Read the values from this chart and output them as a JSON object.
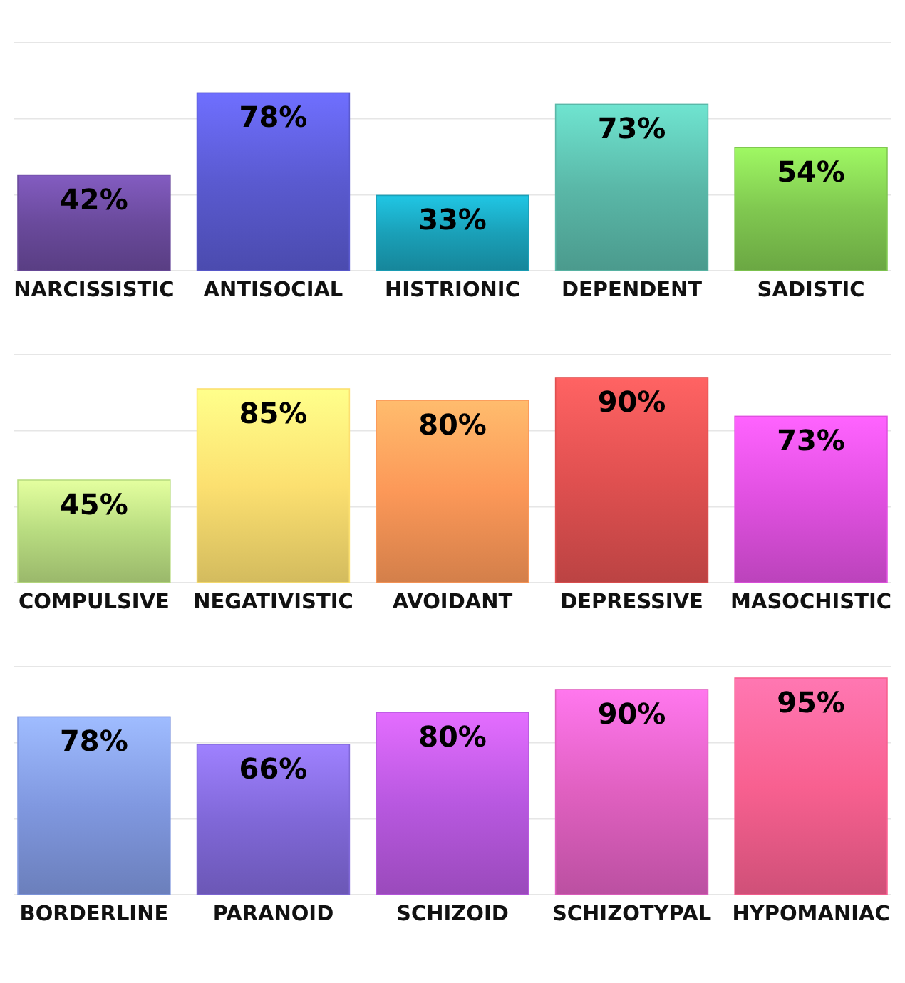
{
  "chart_data": [
    {
      "type": "bar",
      "categories": [
        "NARCISSISTIC",
        "ANTISOCIAL",
        "HISTRIONIC",
        "DEPENDENT",
        "SADISTIC"
      ],
      "values": [
        42,
        78,
        33,
        73,
        54
      ],
      "value_labels": [
        "42%",
        "78%",
        "33%",
        "73%",
        "54%"
      ],
      "colors": [
        "#6a4a9c",
        "#5a5ad0",
        "#1aa0b8",
        "#5ab8a8",
        "#80c850"
      ],
      "ylim": [
        0,
        100
      ],
      "yticks": [
        {
          "value": 0,
          "label": null
        },
        {
          "value": 33.3,
          "label": null
        },
        {
          "value": 66.7,
          "label": null
        },
        {
          "value": 100,
          "label": null
        }
      ],
      "grid": "y",
      "tick_labels": "x"
    },
    {
      "type": "bar",
      "categories": [
        "COMPULSIVE",
        "NEGATIVISTIC",
        "AVOIDANT",
        "DEPRESSIVE",
        "MASOCHISTIC"
      ],
      "values": [
        45,
        85,
        80,
        90,
        73
      ],
      "value_labels": [
        "45%",
        "85%",
        "80%",
        "90%",
        "73%"
      ],
      "colors": [
        "#b8dc80",
        "#fce070",
        "#fc9858",
        "#e05050",
        "#e050e0"
      ],
      "ylim": [
        0,
        100
      ],
      "yticks": [
        {
          "value": 0,
          "label": null
        },
        {
          "value": 33.3,
          "label": null
        },
        {
          "value": 66.7,
          "label": null
        },
        {
          "value": 100,
          "label": null
        }
      ],
      "grid": "y",
      "tick_labels": "x"
    },
    {
      "type": "bar",
      "categories": [
        "BORDERLINE",
        "PARANOID",
        "SCHIZOID",
        "SCHIZOTYPAL",
        "HYPOMANIAC"
      ],
      "values": [
        78,
        66,
        80,
        90,
        95
      ],
      "value_labels": [
        "78%",
        "66%",
        "80%",
        "90%",
        "95%"
      ],
      "colors": [
        "#8098e0",
        "#8068d8",
        "#b858e0",
        "#e060c0",
        "#f86090"
      ],
      "ylim": [
        0,
        100
      ],
      "yticks": [
        {
          "value": 0,
          "label": null
        },
        {
          "value": 33.3,
          "label": null
        },
        {
          "value": 66.7,
          "label": null
        },
        {
          "value": 100,
          "label": null
        }
      ],
      "grid": "y",
      "tick_labels": "x"
    }
  ]
}
